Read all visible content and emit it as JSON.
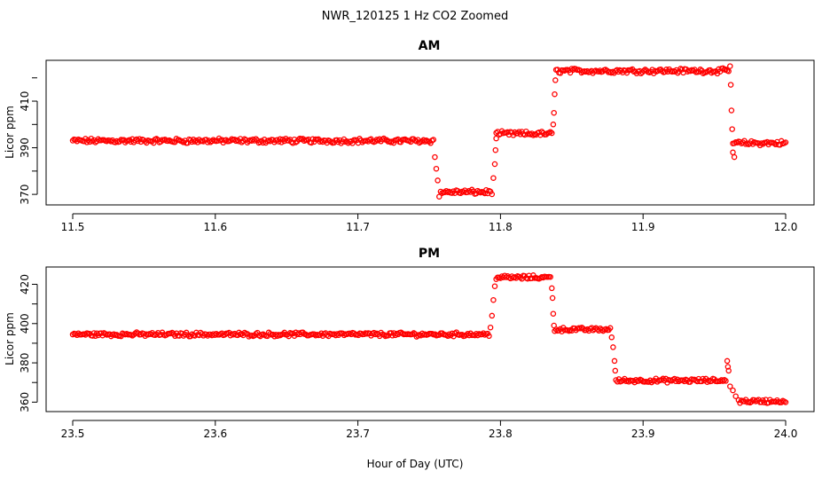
{
  "title": "NWR_120125  1 Hz CO2 Zoomed",
  "xlabel": "Hour of Day (UTC)",
  "colors": {
    "points": "#ff0000"
  },
  "chart_data": [
    {
      "type": "scatter",
      "title": "AM",
      "ylabel": "Licor ppm",
      "xlim": [
        11.5,
        12.0
      ],
      "ylim": [
        367,
        426
      ],
      "xticks": [
        11.5,
        11.6,
        11.7,
        11.8,
        11.9,
        12.0
      ],
      "xtick_labels": [
        "11.5",
        "11.6",
        "11.7",
        "11.8",
        "11.9",
        "12.0"
      ],
      "yticks": [
        370,
        390,
        410
      ],
      "ytick_labels": [
        "370",
        "390",
        "410"
      ],
      "series_segments": [
        {
          "x_start": 11.5,
          "x_end": 11.753,
          "y": 393
        },
        {
          "x_start": 11.758,
          "x_end": 11.794,
          "y": 371
        },
        {
          "x_start": 11.797,
          "x_end": 11.836,
          "y": 396
        },
        {
          "x_start": 11.839,
          "x_end": 11.96,
          "y": 423
        },
        {
          "x_start": 11.963,
          "x_end": 12.0,
          "y": 392
        }
      ],
      "transition_points": [
        [
          11.754,
          386
        ],
        [
          11.755,
          381
        ],
        [
          11.756,
          376
        ],
        [
          11.757,
          369
        ],
        [
          11.795,
          377
        ],
        [
          11.796,
          383
        ],
        [
          11.7965,
          389
        ],
        [
          11.797,
          394
        ],
        [
          11.837,
          400
        ],
        [
          11.8375,
          405
        ],
        [
          11.838,
          413
        ],
        [
          11.8385,
          419
        ],
        [
          11.961,
          425
        ],
        [
          11.9615,
          417
        ],
        [
          11.962,
          406
        ],
        [
          11.9625,
          398
        ],
        [
          11.963,
          388
        ],
        [
          11.964,
          386
        ]
      ]
    },
    {
      "type": "scatter",
      "title": "PM",
      "ylabel": "Licor ppm",
      "xlim": [
        23.5,
        24.0
      ],
      "ylim": [
        357,
        427
      ],
      "xticks": [
        23.5,
        23.6,
        23.7,
        23.8,
        23.9,
        24.0
      ],
      "xtick_labels": [
        "23.5",
        "23.6",
        "23.7",
        "23.8",
        "23.9",
        "24.0"
      ],
      "yticks": [
        360,
        380,
        400,
        420
      ],
      "ytick_labels": [
        "360",
        "380",
        "400",
        "420"
      ],
      "series_segments": [
        {
          "x_start": 23.5,
          "x_end": 23.792,
          "y": 394.5
        },
        {
          "x_start": 23.797,
          "x_end": 23.835,
          "y": 423.5
        },
        {
          "x_start": 23.838,
          "x_end": 23.877,
          "y": 397
        },
        {
          "x_start": 23.881,
          "x_end": 23.958,
          "y": 371
        },
        {
          "x_start": 23.968,
          "x_end": 24.0,
          "y": 360.5
        }
      ],
      "transition_points": [
        [
          23.793,
          398
        ],
        [
          23.794,
          404
        ],
        [
          23.795,
          412
        ],
        [
          23.796,
          419
        ],
        [
          23.836,
          418
        ],
        [
          23.8365,
          413
        ],
        [
          23.837,
          405
        ],
        [
          23.8375,
          399
        ],
        [
          23.878,
          393
        ],
        [
          23.879,
          388
        ],
        [
          23.88,
          381
        ],
        [
          23.8805,
          376
        ],
        [
          23.959,
          381
        ],
        [
          23.9595,
          378
        ],
        [
          23.96,
          376
        ],
        [
          23.961,
          368
        ],
        [
          23.963,
          366
        ],
        [
          23.965,
          363
        ],
        [
          23.967,
          361
        ]
      ]
    }
  ]
}
